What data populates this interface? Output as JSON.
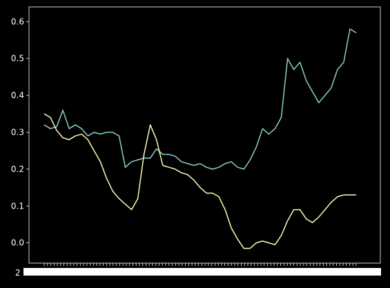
{
  "chart_data": {
    "type": "line",
    "title": "",
    "xlabel": "",
    "ylabel": "",
    "ylim": [
      -0.055,
      0.64
    ],
    "yticks": [
      0.0,
      0.1,
      0.2,
      0.3,
      0.4,
      0.5,
      0.6
    ],
    "ytick_labels": [
      "0.0",
      "0.1",
      "0.2",
      "0.3",
      "0.4",
      "0.5",
      "0.6"
    ],
    "xtick_first_label": "2",
    "xtick_count": 96,
    "grid": false,
    "legend": "none",
    "background": "#000000",
    "series": [
      {
        "color": "#8dd3c7",
        "x": [
          0,
          2,
          4,
          6,
          8,
          10,
          12,
          14,
          16,
          18,
          20,
          22,
          24,
          26,
          28,
          30,
          32,
          34,
          36,
          38,
          40,
          42,
          44,
          46,
          48,
          50,
          52,
          54,
          56,
          58,
          60,
          62,
          64,
          66,
          68,
          70,
          72,
          74,
          76,
          78,
          80,
          82,
          84,
          86,
          88,
          90,
          92,
          94,
          96,
          98,
          100
        ],
        "y": [
          0.32,
          0.31,
          0.315,
          0.36,
          0.31,
          0.32,
          0.31,
          0.29,
          0.3,
          0.295,
          0.3,
          0.3,
          0.29,
          0.205,
          0.22,
          0.225,
          0.23,
          0.23,
          0.255,
          0.24,
          0.24,
          0.235,
          0.22,
          0.215,
          0.21,
          0.215,
          0.205,
          0.2,
          0.205,
          0.215,
          0.22,
          0.205,
          0.2,
          0.225,
          0.26,
          0.31,
          0.295,
          0.31,
          0.34,
          0.5,
          0.47,
          0.49,
          0.44,
          0.41,
          0.38,
          0.4,
          0.42,
          0.47,
          0.49,
          0.58,
          0.57
        ]
      },
      {
        "color": "#ffffb3",
        "x": [
          0,
          2,
          4,
          6,
          8,
          10,
          12,
          14,
          16,
          18,
          20,
          22,
          24,
          26,
          28,
          30,
          32,
          34,
          36,
          38,
          40,
          42,
          44,
          46,
          48,
          50,
          52,
          54,
          56,
          58,
          60,
          62,
          64,
          66,
          68,
          70,
          72,
          74,
          76,
          78,
          80,
          82,
          84,
          86,
          88,
          90,
          92,
          94,
          96,
          98,
          100
        ],
        "y": [
          0.35,
          0.34,
          0.305,
          0.285,
          0.28,
          0.29,
          0.295,
          0.28,
          0.25,
          0.22,
          0.175,
          0.14,
          0.12,
          0.105,
          0.09,
          0.12,
          0.24,
          0.32,
          0.28,
          0.21,
          0.205,
          0.2,
          0.19,
          0.185,
          0.17,
          0.15,
          0.135,
          0.135,
          0.125,
          0.09,
          0.04,
          0.01,
          -0.015,
          -0.015,
          0.0,
          0.005,
          0.0,
          -0.005,
          0.02,
          0.06,
          0.09,
          0.09,
          0.065,
          0.055,
          0.07,
          0.09,
          0.11,
          0.125,
          0.13,
          0.13,
          0.13
        ]
      }
    ]
  }
}
